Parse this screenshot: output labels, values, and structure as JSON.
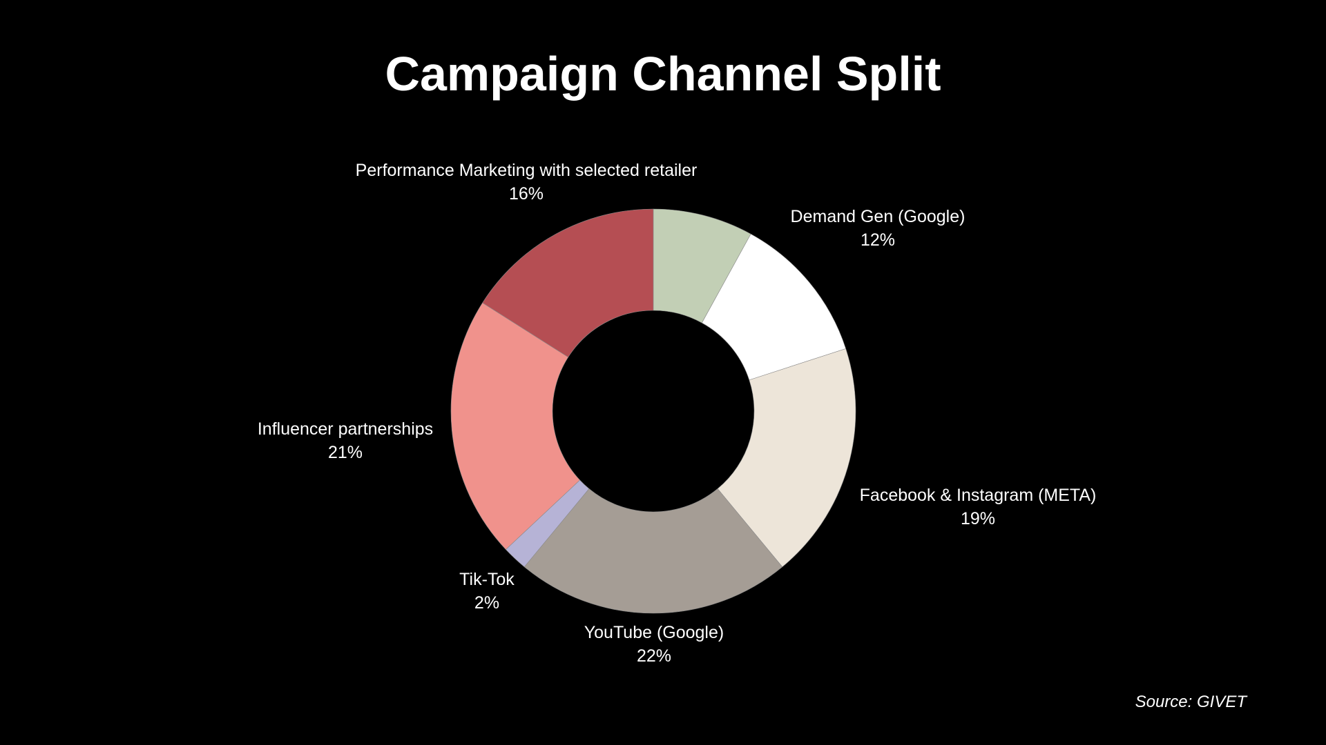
{
  "slide": {
    "title": "Campaign Channel Split",
    "source": "Source: GIVET"
  },
  "chart_data": {
    "type": "pie",
    "donut": true,
    "title": "Campaign Channel Split",
    "start": "12 o'clock",
    "direction": "clockwise",
    "legend": "none",
    "slices": [
      {
        "name": "",
        "value": 8,
        "label": "",
        "percent_label": "",
        "color": "#c2cfb5"
      },
      {
        "name": "Demand Gen (Google)",
        "value": 12,
        "label": "Demand Gen (Google)",
        "percent_label": "12%",
        "color": "#ffffff"
      },
      {
        "name": "Facebook & Instagram (META)",
        "value": 19,
        "label": "Facebook & Instagram (META)",
        "percent_label": "19%",
        "color": "#ede5d9"
      },
      {
        "name": "YouTube  (Google)",
        "value": 22,
        "label": "YouTube  (Google)",
        "percent_label": "22%",
        "color": "#a59d95"
      },
      {
        "name": "Tik-Tok",
        "value": 2,
        "label": "Tik-Tok",
        "percent_label": "2%",
        "color": "#b6b3d6"
      },
      {
        "name": "Influencer partnerships",
        "value": 21,
        "label": "Influencer partnerships",
        "percent_label": "21%",
        "color": "#f0928c"
      },
      {
        "name": "Performance Marketing with selected retailer",
        "value": 16,
        "label": "Performance Marketing with selected retailer",
        "percent_label": "16%",
        "color": "#b54e53"
      }
    ]
  }
}
